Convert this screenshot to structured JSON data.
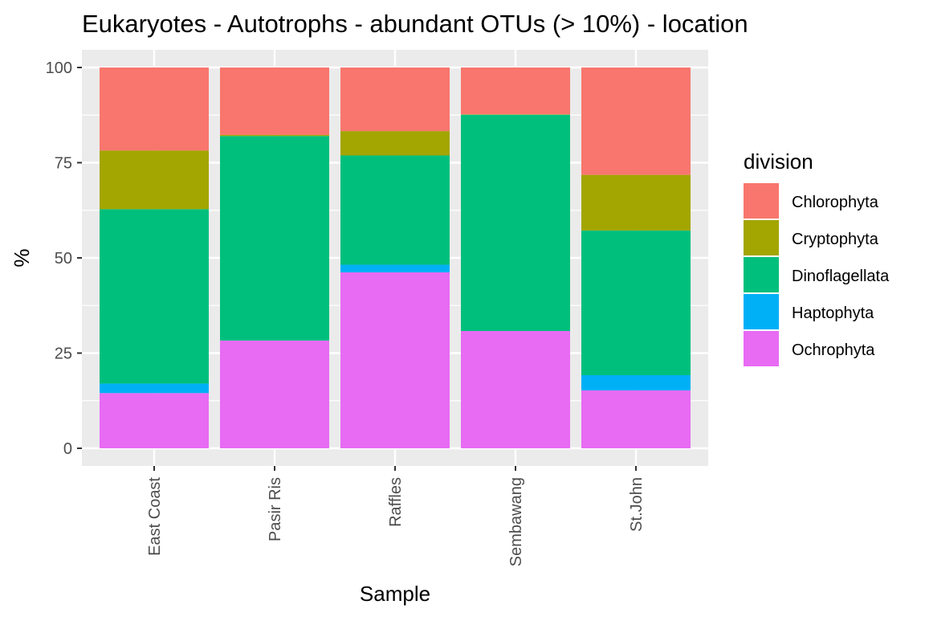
{
  "chart_data": {
    "type": "bar",
    "stacked": true,
    "title": "Eukaryotes - Autotrophs - abundant OTUs (> 10%) - location",
    "xlabel": "Sample",
    "ylabel": "%",
    "ylim": [
      0,
      100
    ],
    "yticks": [
      "0",
      "25",
      "50",
      "75",
      "100"
    ],
    "categories": [
      "East Coast",
      "Pasir Ris",
      "Raffles",
      "Sembawang",
      "St.John"
    ],
    "legend_title": "division",
    "legend_position": "right",
    "grid": true,
    "series": [
      {
        "name": "Ochrophyta",
        "color": "#E76BF3",
        "values": [
          14.5,
          28.3,
          46.2,
          30.8,
          15.2
        ]
      },
      {
        "name": "Haptophyta",
        "color": "#00B0F6",
        "values": [
          2.5,
          0,
          2.0,
          0,
          4.0
        ]
      },
      {
        "name": "Dinoflagellata",
        "color": "#00BF7D",
        "values": [
          45.8,
          53.7,
          28.7,
          56.8,
          38.0
        ]
      },
      {
        "name": "Cryptophyta",
        "color": "#A3A500",
        "values": [
          15.4,
          0.3,
          6.4,
          0.1,
          14.6
        ]
      },
      {
        "name": "Chlorophyta",
        "color": "#F8766D",
        "values": [
          21.8,
          17.7,
          16.7,
          12.3,
          28.2
        ]
      }
    ],
    "legend_order": [
      "Chlorophyta",
      "Cryptophyta",
      "Dinoflagellata",
      "Haptophyta",
      "Ochrophyta"
    ]
  }
}
